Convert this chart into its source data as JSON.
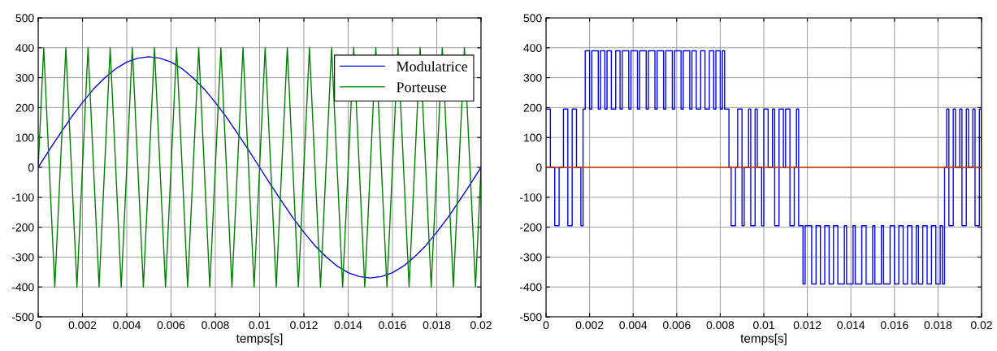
{
  "chart_data": [
    {
      "type": "line",
      "xlabel": "temps[s]",
      "xlim": [
        0,
        0.02
      ],
      "ylim": [
        -500,
        500
      ],
      "xticks": [
        0,
        0.002,
        0.004,
        0.006,
        0.008,
        0.01,
        0.012,
        0.014,
        0.016,
        0.018,
        0.02
      ],
      "yticks": [
        -500,
        -400,
        -300,
        -200,
        -100,
        0,
        100,
        200,
        300,
        400,
        500
      ],
      "grid": true,
      "legend": "top right",
      "series": [
        {
          "name": "Modulatrice",
          "color": "#0000ff",
          "x": [
            0,
            0.0005,
            0.001,
            0.0015,
            0.002,
            0.0025,
            0.003,
            0.0035,
            0.004,
            0.0045,
            0.005,
            0.0055,
            0.006,
            0.0065,
            0.007,
            0.0075,
            0.008,
            0.0085,
            0.009,
            0.0095,
            0.01,
            0.0105,
            0.011,
            0.0115,
            0.012,
            0.0125,
            0.013,
            0.0135,
            0.014,
            0.0145,
            0.015,
            0.0155,
            0.016,
            0.0165,
            0.017,
            0.0175,
            0.018,
            0.0185,
            0.019,
            0.0195,
            0.02
          ],
          "values": [
            0,
            58,
            114,
            168,
            217,
            262,
            299,
            330,
            352,
            365,
            370,
            365,
            352,
            330,
            299,
            262,
            217,
            168,
            114,
            58,
            0,
            -58,
            -114,
            -168,
            -217,
            -262,
            -299,
            -330,
            -352,
            -365,
            -370,
            -365,
            -352,
            -330,
            -299,
            -262,
            -217,
            -168,
            -114,
            -58,
            0
          ]
        },
        {
          "name": "Porteuse",
          "color": "#008000",
          "x": [
            0,
            0.00025,
            0.00075,
            0.00125,
            0.00175,
            0.00225,
            0.00275,
            0.00325,
            0.00375,
            0.00425,
            0.00475,
            0.00525,
            0.00575,
            0.00625,
            0.00675,
            0.00725,
            0.00775,
            0.00825,
            0.00875,
            0.00925,
            0.00975,
            0.01025,
            0.01075,
            0.01125,
            0.01175,
            0.01225,
            0.01275,
            0.01325,
            0.01375,
            0.01425,
            0.01475,
            0.01525,
            0.01575,
            0.01625,
            0.01675,
            0.01725,
            0.01775,
            0.01825,
            0.01875,
            0.01925,
            0.01975,
            0.02
          ],
          "values": [
            0,
            400,
            -400,
            400,
            -400,
            400,
            -400,
            400,
            -400,
            400,
            -400,
            400,
            -400,
            400,
            -400,
            400,
            -400,
            400,
            -400,
            400,
            -400,
            400,
            -400,
            400,
            -400,
            400,
            -400,
            400,
            -400,
            400,
            -400,
            400,
            -400,
            400,
            -400,
            400,
            -400,
            400,
            -400,
            400,
            -400,
            0
          ]
        }
      ]
    },
    {
      "type": "step",
      "xlabel": "temps[s]",
      "xlim": [
        0,
        0.02
      ],
      "ylim": [
        -500,
        500
      ],
      "xticks": [
        0,
        0.002,
        0.004,
        0.006,
        0.008,
        0.01,
        0.012,
        0.014,
        0.016,
        0.018,
        0.02
      ],
      "yticks": [
        -500,
        -400,
        -300,
        -200,
        -100,
        0,
        100,
        200,
        300,
        400,
        500
      ],
      "grid": true,
      "series": [
        {
          "color": "#0000ff",
          "x": [
            0,
            0.0002,
            0.0004,
            0.0006,
            0.0008,
            0.001,
            0.0012,
            0.0014,
            0.0016,
            0.0017,
            0.0018,
            0.002,
            0.0021,
            0.0024,
            0.0025,
            0.0027,
            0.0028,
            0.003,
            0.0032,
            0.0034,
            0.0035,
            0.0038,
            0.0039,
            0.0042,
            0.0043,
            0.0046,
            0.0047,
            0.005,
            0.0051,
            0.0054,
            0.0055,
            0.0058,
            0.0059,
            0.0062,
            0.0063,
            0.0066,
            0.0067,
            0.0069,
            0.0071,
            0.0073,
            0.0075,
            0.0077,
            0.0078,
            0.008,
            0.0081,
            0.0082,
            0.0084,
            0.0085,
            0.0087,
            0.0088,
            0.009,
            0.0091,
            0.0093,
            0.0094,
            0.0096,
            0.0097,
            0.0099,
            0.01,
            0.0102,
            0.0104,
            0.0105,
            0.0107,
            0.0109,
            0.011,
            0.0112,
            0.0114,
            0.0115,
            0.0116,
            0.0118,
            0.0119,
            0.0122,
            0.0124,
            0.0126,
            0.0128,
            0.013,
            0.0132,
            0.0134,
            0.0137,
            0.0138,
            0.0141,
            0.0142,
            0.0145,
            0.0147,
            0.015,
            0.0151,
            0.0154,
            0.0155,
            0.0158,
            0.016,
            0.0162,
            0.0164,
            0.0166,
            0.0168,
            0.017,
            0.0171,
            0.0173,
            0.0175,
            0.0177,
            0.0179,
            0.0181,
            0.0182,
            0.0183,
            0.0184,
            0.0185,
            0.0187,
            0.0188,
            0.019,
            0.0191,
            0.0193,
            0.0194,
            0.0196,
            0.0197,
            0.0199,
            0.02
          ],
          "values": [
            195,
            0,
            -195,
            0,
            195,
            -195,
            195,
            0,
            -195,
            195,
            390,
            195,
            390,
            195,
            390,
            195,
            390,
            195,
            390,
            195,
            390,
            195,
            390,
            195,
            390,
            195,
            390,
            195,
            390,
            195,
            390,
            195,
            390,
            195,
            390,
            195,
            390,
            195,
            390,
            195,
            390,
            195,
            390,
            195,
            390,
            195,
            0,
            -195,
            0,
            195,
            -195,
            0,
            195,
            -195,
            195,
            0,
            -195,
            195,
            0,
            195,
            -195,
            195,
            0,
            195,
            -195,
            0,
            195,
            -195,
            -390,
            -195,
            -390,
            -195,
            -390,
            -195,
            -390,
            -195,
            -390,
            -195,
            -390,
            -195,
            -390,
            -195,
            -390,
            -195,
            -390,
            -195,
            -390,
            -195,
            -390,
            -195,
            -390,
            -195,
            -390,
            -195,
            -390,
            -195,
            -390,
            -195,
            -390,
            -195,
            -390,
            0,
            195,
            -195,
            195,
            0,
            195,
            -195,
            195,
            0,
            195,
            -195,
            195,
            0
          ]
        },
        {
          "color": "#cc3300",
          "type": "line",
          "x": [
            0,
            0.02
          ],
          "values": [
            0,
            0
          ]
        }
      ]
    }
  ]
}
